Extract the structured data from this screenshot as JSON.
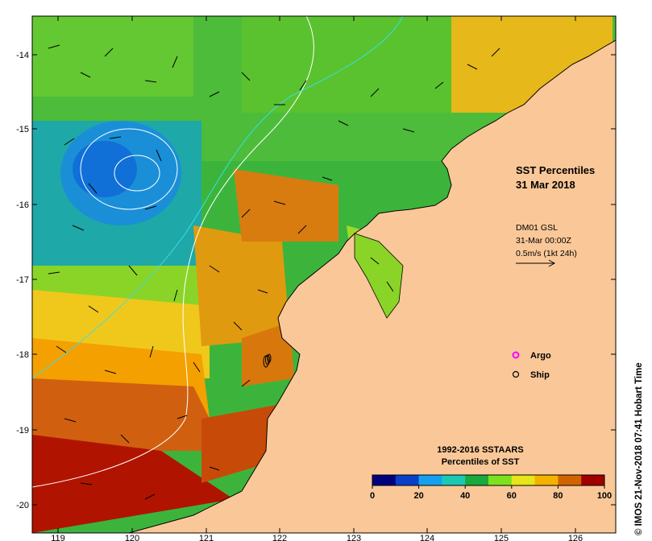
{
  "map": {
    "title_line1": "SST Percentiles",
    "title_line2": "31 Mar 2018",
    "current": {
      "line1": "DM01 GSL",
      "line2": "31-Mar 00:00Z",
      "line3": "0.5m/s (1kt 24h)"
    },
    "legend": {
      "argo_label": "Argo",
      "ship_label": "Ship",
      "argo_color": "#ff00ff",
      "ship_color": "#000000"
    },
    "x_ticks": [
      "119",
      "120",
      "121",
      "122",
      "123",
      "124",
      "125",
      "126"
    ],
    "y_ticks": [
      "-14",
      "-15",
      "-16",
      "-17",
      "-18",
      "-19",
      "-20"
    ],
    "colorbar": {
      "title_line1": "1992-2016 SSTAARS",
      "title_line2": "Percentiles of SST",
      "colors": [
        "#00007f",
        "#0a3fc8",
        "#15a0ef",
        "#1ac8b4",
        "#19a93c",
        "#7de21e",
        "#e6e619",
        "#f4b200",
        "#d26400",
        "#a00000"
      ],
      "tick_labels": [
        "0",
        "20",
        "40",
        "60",
        "80",
        "100"
      ]
    },
    "credit": "© IMOS 21-Nov-2018 07:41 Hobart Time",
    "land_color": "#fac898"
  }
}
